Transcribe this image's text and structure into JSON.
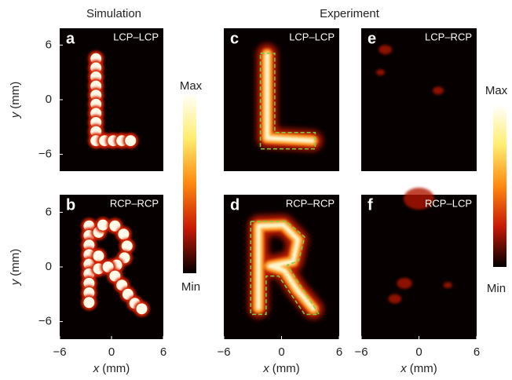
{
  "columns": [
    "Simulation",
    "Experiment"
  ],
  "panels": [
    {
      "letter": "a",
      "label": "LCP–LCP"
    },
    {
      "letter": "b",
      "label": "RCP–RCP"
    },
    {
      "letter": "c",
      "label": "LCP–LCP"
    },
    {
      "letter": "d",
      "label": "RCP–RCP"
    },
    {
      "letter": "e",
      "label": "LCP–RCP"
    },
    {
      "letter": "f",
      "label": "RCP–LCP"
    }
  ],
  "axes": {
    "x_label": {
      "var": "x",
      "unit": "(mm)"
    },
    "y_label": {
      "var": "y",
      "unit": "(mm)"
    },
    "ticks": [
      {
        "value": -6,
        "label": "−6"
      },
      0,
      6
    ]
  },
  "colorbar": {
    "max": "Max",
    "min": "Min"
  }
}
